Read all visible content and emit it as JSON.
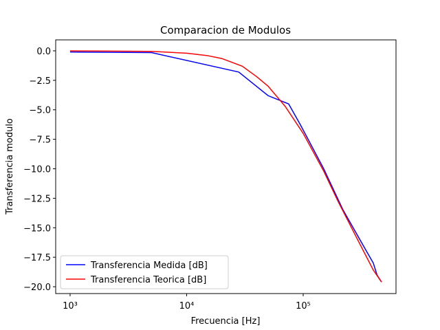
{
  "chart_data": {
    "type": "line",
    "title": "Comparacion de Modulos",
    "x_label": "Frecuencia [Hz]",
    "y_label": "Transferencia modulo",
    "x_scale": "log",
    "xlim": [
      752,
      626000
    ],
    "ylim": [
      -20.58,
      0.93
    ],
    "xticks": [
      {
        "value": 1000,
        "label": "10³"
      },
      {
        "value": 10000,
        "label": "10⁴"
      },
      {
        "value": 100000,
        "label": "10⁵"
      }
    ],
    "yticks": [
      {
        "value": -20,
        "label": "−20.0"
      },
      {
        "value": -17.5,
        "label": "−17.5"
      },
      {
        "value": -15,
        "label": "−15.0"
      },
      {
        "value": -12.5,
        "label": "−12.5"
      },
      {
        "value": -10,
        "label": "−10.0"
      },
      {
        "value": -7.5,
        "label": "−7.5"
      },
      {
        "value": -5,
        "label": "−5.0"
      },
      {
        "value": -2.5,
        "label": "−2.5"
      },
      {
        "value": 0,
        "label": "0.0"
      }
    ],
    "legend": "lower left",
    "series": [
      {
        "name": "Transferencia Medida [dB]",
        "color": "#0000ff",
        "x": [
          1000,
          5000,
          28000,
          50000,
          75000,
          95000,
          150000,
          220000,
          350000,
          400000,
          430000,
          470000
        ],
        "values": [
          -0.1,
          -0.15,
          -1.8,
          -3.8,
          -4.5,
          -6.3,
          -10,
          -13.5,
          -17,
          -18,
          -19,
          -19.6
        ]
      },
      {
        "name": "Transferencia Teorica [dB]",
        "color": "#ff0000",
        "x": [
          1000,
          5000,
          10000,
          15000,
          20000,
          30000,
          40000,
          50000,
          70000,
          100000,
          150000,
          200000,
          300000,
          400000,
          470000
        ],
        "values": [
          0,
          -0.05,
          -0.2,
          -0.4,
          -0.65,
          -1.3,
          -2.2,
          -3.0,
          -4.7,
          -7.0,
          -10.2,
          -12.8,
          -16.2,
          -18.6,
          -19.6
        ]
      }
    ]
  }
}
